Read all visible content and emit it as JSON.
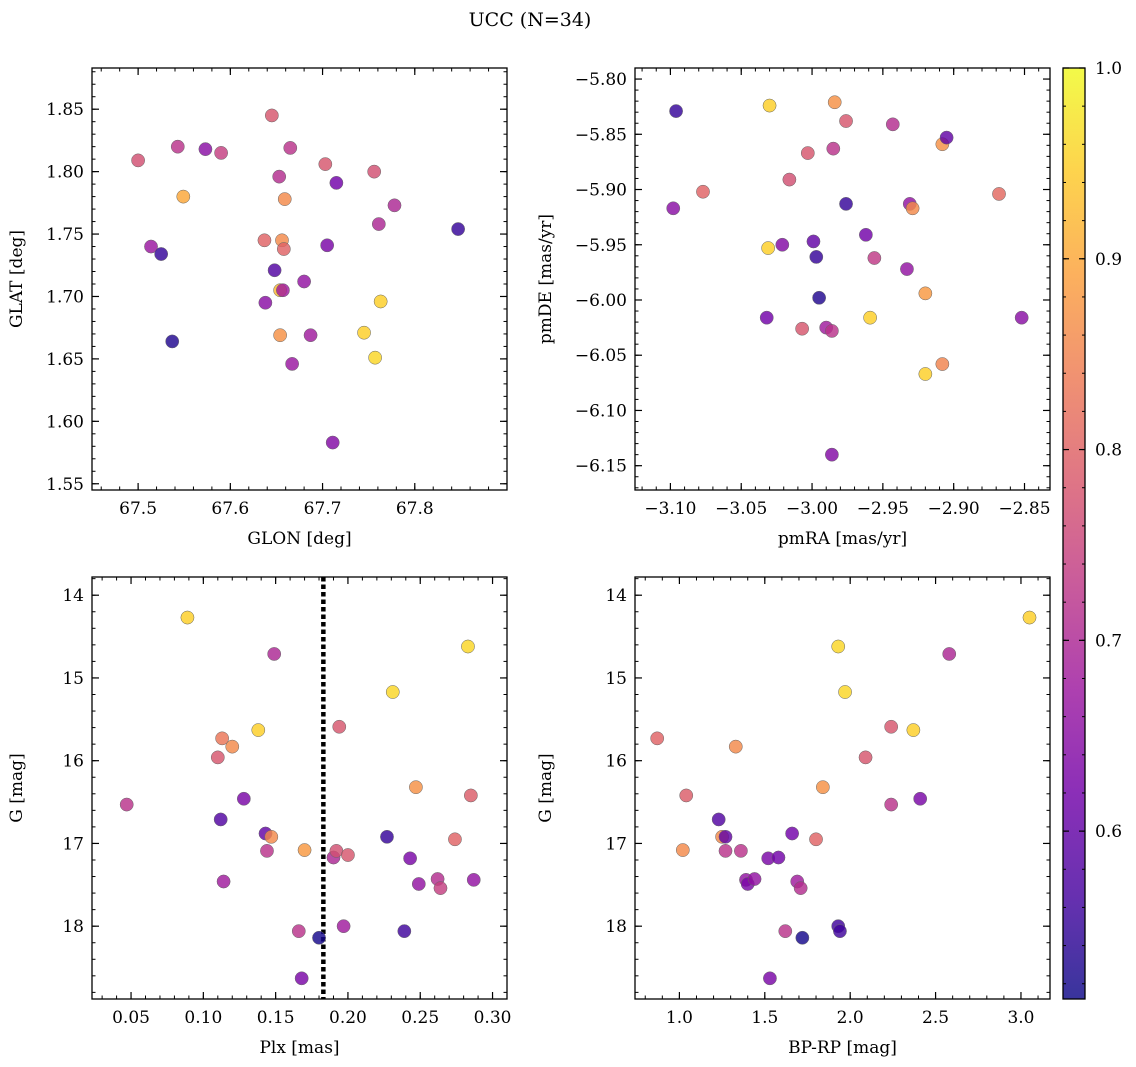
{
  "figure": {
    "title": "UCC (N=34)"
  },
  "chart_data": [
    {
      "type": "scatter",
      "id": "glon-glat",
      "xlabel": "GLON [deg]",
      "ylabel": "GLAT [deg]",
      "xlim": [
        67.45,
        67.9
      ],
      "ylim": [
        1.545,
        1.883
      ],
      "xticks": [
        67.5,
        67.6,
        67.7,
        67.8
      ],
      "yticks": [
        1.55,
        1.6,
        1.65,
        1.7,
        1.75,
        1.8,
        1.85
      ],
      "invert_y": false,
      "points": [
        {
          "x": 67.5,
          "y": 1.809,
          "c": 0.77
        },
        {
          "x": 67.514,
          "y": 1.74,
          "c": 0.67
        },
        {
          "x": 67.525,
          "y": 1.734,
          "c": 0.55
        },
        {
          "x": 67.537,
          "y": 1.664,
          "c": 0.53
        },
        {
          "x": 67.543,
          "y": 1.82,
          "c": 0.72
        },
        {
          "x": 67.549,
          "y": 1.78,
          "c": 0.9
        },
        {
          "x": 67.573,
          "y": 1.818,
          "c": 0.65
        },
        {
          "x": 67.59,
          "y": 1.815,
          "c": 0.74
        },
        {
          "x": 67.637,
          "y": 1.745,
          "c": 0.8
        },
        {
          "x": 67.638,
          "y": 1.695,
          "c": 0.65
        },
        {
          "x": 67.645,
          "y": 1.845,
          "c": 0.78
        },
        {
          "x": 67.648,
          "y": 1.721,
          "c": 0.58
        },
        {
          "x": 67.653,
          "y": 1.796,
          "c": 0.71
        },
        {
          "x": 67.654,
          "y": 1.705,
          "c": 0.92
        },
        {
          "x": 67.654,
          "y": 1.669,
          "c": 0.87
        },
        {
          "x": 67.656,
          "y": 1.745,
          "c": 0.86
        },
        {
          "x": 67.657,
          "y": 1.705,
          "c": 0.68
        },
        {
          "x": 67.658,
          "y": 1.738,
          "c": 0.8
        },
        {
          "x": 67.659,
          "y": 1.778,
          "c": 0.86
        },
        {
          "x": 67.665,
          "y": 1.819,
          "c": 0.72
        },
        {
          "x": 67.667,
          "y": 1.646,
          "c": 0.67
        },
        {
          "x": 67.68,
          "y": 1.712,
          "c": 0.66
        },
        {
          "x": 67.687,
          "y": 1.669,
          "c": 0.68
        },
        {
          "x": 67.703,
          "y": 1.806,
          "c": 0.78
        },
        {
          "x": 67.705,
          "y": 1.741,
          "c": 0.63
        },
        {
          "x": 67.711,
          "y": 1.583,
          "c": 0.64
        },
        {
          "x": 67.715,
          "y": 1.791,
          "c": 0.62
        },
        {
          "x": 67.745,
          "y": 1.671,
          "c": 0.95
        },
        {
          "x": 67.756,
          "y": 1.8,
          "c": 0.77
        },
        {
          "x": 67.757,
          "y": 1.651,
          "c": 0.96
        },
        {
          "x": 67.761,
          "y": 1.758,
          "c": 0.7
        },
        {
          "x": 67.763,
          "y": 1.696,
          "c": 0.95
        },
        {
          "x": 67.778,
          "y": 1.773,
          "c": 0.7
        },
        {
          "x": 67.847,
          "y": 1.754,
          "c": 0.55
        }
      ]
    },
    {
      "type": "scatter",
      "id": "pmra-pmde",
      "xlabel": "pmRA [mas/yr]",
      "ylabel": "pmDE [mas/yr]",
      "xlim": [
        -3.125,
        -2.832
      ],
      "ylim": [
        -6.172,
        -5.79
      ],
      "xticks": [
        -3.1,
        -3.05,
        -3.0,
        -2.95,
        -2.9,
        -2.85
      ],
      "yticks": [
        -6.15,
        -6.1,
        -6.05,
        -6.0,
        -5.95,
        -5.9,
        -5.85,
        -5.8
      ],
      "invert_y": false,
      "points": [
        {
          "x": -3.096,
          "y": -5.829,
          "c": 0.55
        },
        {
          "x": -3.098,
          "y": -5.917,
          "c": 0.65
        },
        {
          "x": -3.077,
          "y": -5.902,
          "c": 0.8
        },
        {
          "x": -3.03,
          "y": -5.824,
          "c": 0.95
        },
        {
          "x": -3.031,
          "y": -5.953,
          "c": 0.95
        },
        {
          "x": -3.032,
          "y": -6.016,
          "c": 0.62
        },
        {
          "x": -3.021,
          "y": -5.95,
          "c": 0.64
        },
        {
          "x": -3.016,
          "y": -5.891,
          "c": 0.77
        },
        {
          "x": -3.003,
          "y": -5.867,
          "c": 0.78
        },
        {
          "x": -2.999,
          "y": -5.947,
          "c": 0.6
        },
        {
          "x": -2.997,
          "y": -5.961,
          "c": 0.55
        },
        {
          "x": -2.995,
          "y": -5.998,
          "c": 0.53
        },
        {
          "x": -3.007,
          "y": -6.026,
          "c": 0.78
        },
        {
          "x": -2.99,
          "y": -6.025,
          "c": 0.68
        },
        {
          "x": -2.986,
          "y": -6.028,
          "c": 0.72
        },
        {
          "x": -2.986,
          "y": -6.14,
          "c": 0.64
        },
        {
          "x": -2.985,
          "y": -5.863,
          "c": 0.72
        },
        {
          "x": -2.984,
          "y": -5.821,
          "c": 0.87
        },
        {
          "x": -2.976,
          "y": -5.838,
          "c": 0.78
        },
        {
          "x": -2.976,
          "y": -5.913,
          "c": 0.55
        },
        {
          "x": -2.962,
          "y": -5.941,
          "c": 0.62
        },
        {
          "x": -2.959,
          "y": -6.016,
          "c": 0.95
        },
        {
          "x": -2.956,
          "y": -5.962,
          "c": 0.73
        },
        {
          "x": -2.943,
          "y": -5.841,
          "c": 0.71
        },
        {
          "x": -2.933,
          "y": -5.972,
          "c": 0.66
        },
        {
          "x": -2.931,
          "y": -5.913,
          "c": 0.66
        },
        {
          "x": -2.929,
          "y": -5.917,
          "c": 0.86
        },
        {
          "x": -2.92,
          "y": -5.994,
          "c": 0.88
        },
        {
          "x": -2.92,
          "y": -6.067,
          "c": 0.95
        },
        {
          "x": -2.908,
          "y": -5.859,
          "c": 0.87
        },
        {
          "x": -2.908,
          "y": -6.058,
          "c": 0.85
        },
        {
          "x": -2.905,
          "y": -5.853,
          "c": 0.6
        },
        {
          "x": -2.868,
          "y": -5.904,
          "c": 0.81
        },
        {
          "x": -2.852,
          "y": -6.016,
          "c": 0.65
        }
      ]
    },
    {
      "type": "scatter",
      "id": "plx-g",
      "xlabel": "Plx [mas]",
      "ylabel": "G [mag]",
      "xlim": [
        0.023,
        0.31
      ],
      "ylim": [
        18.88,
        13.78
      ],
      "xticks": [
        0.05,
        0.1,
        0.15,
        0.2,
        0.25,
        0.3
      ],
      "yticks": [
        14,
        15,
        16,
        17,
        18
      ],
      "invert_y": true,
      "vline": 0.183,
      "points": [
        {
          "x": 0.047,
          "y": 16.53,
          "c": 0.72
        },
        {
          "x": 0.089,
          "y": 14.27,
          "c": 0.95
        },
        {
          "x": 0.11,
          "y": 15.96,
          "c": 0.78
        },
        {
          "x": 0.112,
          "y": 16.71,
          "c": 0.58
        },
        {
          "x": 0.113,
          "y": 15.73,
          "c": 0.83
        },
        {
          "x": 0.114,
          "y": 17.46,
          "c": 0.68
        },
        {
          "x": 0.12,
          "y": 15.83,
          "c": 0.86
        },
        {
          "x": 0.128,
          "y": 16.46,
          "c": 0.63
        },
        {
          "x": 0.138,
          "y": 15.63,
          "c": 0.95
        },
        {
          "x": 0.143,
          "y": 16.88,
          "c": 0.6
        },
        {
          "x": 0.144,
          "y": 17.09,
          "c": 0.72
        },
        {
          "x": 0.147,
          "y": 16.92,
          "c": 0.86
        },
        {
          "x": 0.149,
          "y": 14.71,
          "c": 0.7
        },
        {
          "x": 0.166,
          "y": 18.06,
          "c": 0.72
        },
        {
          "x": 0.168,
          "y": 18.63,
          "c": 0.63
        },
        {
          "x": 0.17,
          "y": 17.08,
          "c": 0.88
        },
        {
          "x": 0.18,
          "y": 18.14,
          "c": 0.52
        },
        {
          "x": 0.19,
          "y": 17.17,
          "c": 0.7
        },
        {
          "x": 0.192,
          "y": 17.09,
          "c": 0.77
        },
        {
          "x": 0.194,
          "y": 15.59,
          "c": 0.78
        },
        {
          "x": 0.197,
          "y": 18.0,
          "c": 0.68
        },
        {
          "x": 0.2,
          "y": 17.14,
          "c": 0.78
        },
        {
          "x": 0.227,
          "y": 16.92,
          "c": 0.55
        },
        {
          "x": 0.231,
          "y": 15.17,
          "c": 0.96
        },
        {
          "x": 0.239,
          "y": 18.06,
          "c": 0.56
        },
        {
          "x": 0.243,
          "y": 17.18,
          "c": 0.63
        },
        {
          "x": 0.247,
          "y": 16.32,
          "c": 0.87
        },
        {
          "x": 0.249,
          "y": 17.49,
          "c": 0.66
        },
        {
          "x": 0.262,
          "y": 17.43,
          "c": 0.71
        },
        {
          "x": 0.264,
          "y": 17.54,
          "c": 0.74
        },
        {
          "x": 0.274,
          "y": 16.95,
          "c": 0.8
        },
        {
          "x": 0.283,
          "y": 14.62,
          "c": 0.96
        },
        {
          "x": 0.285,
          "y": 16.42,
          "c": 0.79
        },
        {
          "x": 0.287,
          "y": 17.44,
          "c": 0.66
        }
      ]
    },
    {
      "type": "scatter",
      "id": "bprp-g",
      "xlabel": "BP-RP [mag]",
      "ylabel": "G [mag]",
      "xlim": [
        0.74,
        3.17
      ],
      "ylim": [
        18.88,
        13.78
      ],
      "xticks": [
        1.0,
        1.5,
        2.0,
        2.5,
        3.0
      ],
      "yticks": [
        14,
        15,
        16,
        17,
        18
      ],
      "invert_y": true,
      "points": [
        {
          "x": 0.87,
          "y": 15.73,
          "c": 0.8
        },
        {
          "x": 1.02,
          "y": 17.08,
          "c": 0.86
        },
        {
          "x": 1.04,
          "y": 16.42,
          "c": 0.79
        },
        {
          "x": 1.23,
          "y": 16.71,
          "c": 0.58
        },
        {
          "x": 1.25,
          "y": 16.92,
          "c": 0.86
        },
        {
          "x": 1.27,
          "y": 16.92,
          "c": 0.6
        },
        {
          "x": 1.27,
          "y": 17.09,
          "c": 0.72
        },
        {
          "x": 1.33,
          "y": 15.83,
          "c": 0.86
        },
        {
          "x": 1.36,
          "y": 17.09,
          "c": 0.72
        },
        {
          "x": 1.39,
          "y": 17.44,
          "c": 0.66
        },
        {
          "x": 1.4,
          "y": 17.49,
          "c": 0.63
        },
        {
          "x": 1.44,
          "y": 17.43,
          "c": 0.66
        },
        {
          "x": 1.52,
          "y": 17.18,
          "c": 0.63
        },
        {
          "x": 1.53,
          "y": 18.63,
          "c": 0.63
        },
        {
          "x": 1.58,
          "y": 17.17,
          "c": 0.62
        },
        {
          "x": 1.62,
          "y": 18.06,
          "c": 0.72
        },
        {
          "x": 1.66,
          "y": 16.88,
          "c": 0.62
        },
        {
          "x": 1.69,
          "y": 17.46,
          "c": 0.68
        },
        {
          "x": 1.71,
          "y": 17.54,
          "c": 0.71
        },
        {
          "x": 1.72,
          "y": 18.14,
          "c": 0.52
        },
        {
          "x": 1.8,
          "y": 16.95,
          "c": 0.8
        },
        {
          "x": 1.84,
          "y": 16.32,
          "c": 0.87
        },
        {
          "x": 1.93,
          "y": 14.62,
          "c": 0.96
        },
        {
          "x": 1.93,
          "y": 18.0,
          "c": 0.56
        },
        {
          "x": 1.94,
          "y": 18.06,
          "c": 0.56
        },
        {
          "x": 1.97,
          "y": 15.17,
          "c": 0.96
        },
        {
          "x": 2.09,
          "y": 15.96,
          "c": 0.78
        },
        {
          "x": 2.24,
          "y": 15.59,
          "c": 0.78
        },
        {
          "x": 2.24,
          "y": 16.53,
          "c": 0.72
        },
        {
          "x": 2.37,
          "y": 15.63,
          "c": 0.95
        },
        {
          "x": 2.41,
          "y": 16.46,
          "c": 0.63
        },
        {
          "x": 2.58,
          "y": 14.71,
          "c": 0.7
        },
        {
          "x": 3.05,
          "y": 14.27,
          "c": 0.95
        }
      ]
    }
  ],
  "colorbar": {
    "min": 0.512,
    "max": 1.0,
    "ticks": [
      0.6,
      0.7,
      0.8,
      0.9,
      1.0
    ],
    "tick_labels": [
      "0.6",
      "0.7",
      "0.8",
      "0.9",
      "1.0"
    ],
    "colormap": "plasma",
    "stops": [
      "#0d0887",
      "#46039f",
      "#7201a8",
      "#9c179e",
      "#bd3786",
      "#d8576b",
      "#ed7953",
      "#fb9f3a",
      "#fdca26",
      "#f0f921"
    ]
  }
}
